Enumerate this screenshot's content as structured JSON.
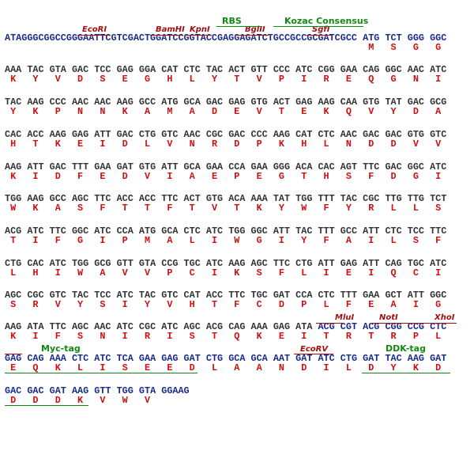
{
  "header": {
    "sequence": "ATAGGGCGGCCGGGAATTCGTCGACTGGATCCGGTACCGAGGAGATCTGCCGCCGCGATCGCC",
    "codons": [
      "ATG",
      "TCT",
      "GGG",
      "GGC"
    ],
    "aa": [
      "M",
      "S",
      "G",
      "G"
    ],
    "annotations": [
      "EcoRI",
      "BamHI",
      "KpnI",
      "BglII",
      "SgfI",
      "RBS",
      "Kozac Consensus"
    ]
  },
  "rows": [
    {
      "codons": [
        "AAA",
        "TAC",
        "GTA",
        "GAC",
        "TCC",
        "GAG",
        "GGA",
        "CAT",
        "CTC",
        "TAC",
        "ACT",
        "GTT",
        "CCC",
        "ATC",
        "CGG",
        "GAA",
        "CAG",
        "GGC",
        "AAC",
        "ATC"
      ],
      "aa": [
        "K",
        "Y",
        "V",
        "D",
        "S",
        "E",
        "G",
        "H",
        "L",
        "Y",
        "T",
        "V",
        "P",
        "I",
        "R",
        "E",
        "Q",
        "G",
        "N",
        "I"
      ]
    },
    {
      "codons": [
        "TAC",
        "AAG",
        "CCC",
        "AAC",
        "AAC",
        "AAG",
        "GCC",
        "ATG",
        "GCA",
        "GAC",
        "GAG",
        "GTG",
        "ACT",
        "GAG",
        "AAG",
        "CAA",
        "GTG",
        "TAT",
        "GAC",
        "GCG"
      ],
      "aa": [
        "Y",
        "K",
        "P",
        "N",
        "N",
        "K",
        "A",
        "M",
        "A",
        "D",
        "E",
        "V",
        "T",
        "E",
        "K",
        "Q",
        "V",
        "Y",
        "D",
        "A"
      ]
    },
    {
      "codons": [
        "CAC",
        "ACC",
        "AAG",
        "GAG",
        "ATT",
        "GAC",
        "CTG",
        "GTC",
        "AAC",
        "CGC",
        "GAC",
        "CCC",
        "AAG",
        "CAT",
        "CTC",
        "AAC",
        "GAC",
        "GAC",
        "GTG",
        "GTC"
      ],
      "aa": [
        "H",
        "T",
        "K",
        "E",
        "I",
        "D",
        "L",
        "V",
        "N",
        "R",
        "D",
        "P",
        "K",
        "H",
        "L",
        "N",
        "D",
        "D",
        "V",
        "V"
      ]
    },
    {
      "codons": [
        "AAG",
        "ATT",
        "GAC",
        "TTT",
        "GAA",
        "GAT",
        "GTG",
        "ATT",
        "GCA",
        "GAA",
        "CCA",
        "GAA",
        "GGG",
        "ACA",
        "CAC",
        "AGT",
        "TTC",
        "GAC",
        "GGC",
        "ATC"
      ],
      "aa": [
        "K",
        "I",
        "D",
        "F",
        "E",
        "D",
        "V",
        "I",
        "A",
        "E",
        "P",
        "E",
        "G",
        "T",
        "H",
        "S",
        "F",
        "D",
        "G",
        "I"
      ]
    },
    {
      "codons": [
        "TGG",
        "AAG",
        "GCC",
        "AGC",
        "TTC",
        "ACC",
        "ACC",
        "TTC",
        "ACT",
        "GTG",
        "ACA",
        "AAA",
        "TAT",
        "TGG",
        "TTT",
        "TAC",
        "CGC",
        "TTG",
        "TTG",
        "TCT"
      ],
      "aa": [
        "W",
        "K",
        "A",
        "S",
        "F",
        "T",
        "T",
        "F",
        "T",
        "V",
        "T",
        "K",
        "Y",
        "W",
        "F",
        "Y",
        "R",
        "L",
        "L",
        "S"
      ]
    },
    {
      "codons": [
        "ACG",
        "ATC",
        "TTC",
        "GGC",
        "ATC",
        "CCA",
        "ATG",
        "GCA",
        "CTC",
        "ATC",
        "TGG",
        "GGC",
        "ATT",
        "TAC",
        "TTT",
        "GCC",
        "ATT",
        "CTC",
        "TCC",
        "TTC"
      ],
      "aa": [
        "T",
        "I",
        "F",
        "G",
        "I",
        "P",
        "M",
        "A",
        "L",
        "I",
        "W",
        "G",
        "I",
        "Y",
        "F",
        "A",
        "I",
        "L",
        "S",
        "F"
      ]
    },
    {
      "codons": [
        "CTG",
        "CAC",
        "ATC",
        "TGG",
        "GCG",
        "GTT",
        "GTA",
        "CCG",
        "TGC",
        "ATC",
        "AAG",
        "AGC",
        "TTC",
        "CTG",
        "ATT",
        "GAG",
        "ATT",
        "CAG",
        "TGC",
        "ATC"
      ],
      "aa": [
        "L",
        "H",
        "I",
        "W",
        "A",
        "V",
        "V",
        "P",
        "C",
        "I",
        "K",
        "S",
        "F",
        "L",
        "I",
        "E",
        "I",
        "Q",
        "C",
        "I"
      ]
    },
    {
      "codons": [
        "AGC",
        "CGC",
        "GTC",
        "TAC",
        "TCC",
        "ATC",
        "TAC",
        "GTC",
        "CAT",
        "ACC",
        "TTC",
        "TGC",
        "GAT",
        "CCA",
        "CTC",
        "TTT",
        "GAA",
        "GCT",
        "ATT",
        "GGC"
      ],
      "aa": [
        "S",
        "R",
        "V",
        "Y",
        "S",
        "I",
        "Y",
        "V",
        "H",
        "T",
        "F",
        "C",
        "D",
        "P",
        "L",
        "F",
        "E",
        "A",
        "I",
        "G"
      ]
    },
    {
      "codons": [
        "AAG",
        "ATA",
        "TTC",
        "AGC",
        "AAC",
        "ATC",
        "CGC",
        "ATC",
        "AGC",
        "ACG",
        "CAG",
        "AAA",
        "GAG",
        "ATA",
        "ACG",
        "CGT",
        "ACG",
        "CGG",
        "CCG",
        "CTC"
      ],
      "aa": [
        "K",
        "I",
        "F",
        "S",
        "N",
        "I",
        "R",
        "I",
        "S",
        "T",
        "Q",
        "K",
        "E",
        "I",
        "T",
        "R",
        "T",
        "R",
        "P",
        "L"
      ],
      "annotations": [
        "MluI",
        "NotI",
        "XhoI"
      ]
    },
    {
      "codons": [
        "GAG",
        "CAG",
        "AAA",
        "CTC",
        "ATC",
        "TCA",
        "GAA",
        "GAG",
        "GAT",
        "CTG",
        "GCA",
        "GCA",
        "AAT",
        "GAT",
        "ATC",
        "CTG",
        "GAT",
        "TAC",
        "AAG",
        "GAT"
      ],
      "aa": [
        "E",
        "Q",
        "K",
        "L",
        "I",
        "S",
        "E",
        "E",
        "D",
        "L",
        "A",
        "A",
        "N",
        "D",
        "I",
        "L",
        "D",
        "Y",
        "K",
        "D"
      ],
      "annotations": [
        "Myc-tag",
        "EcoRV",
        "DDK-tag"
      ]
    },
    {
      "codons": [
        "GAC",
        "GAC",
        "GAT",
        "AAG",
        "GTT",
        "TGG",
        "GTA",
        "GGAAG"
      ],
      "aa": [
        "D",
        "D",
        "D",
        "K",
        "V",
        "W",
        "V"
      ]
    }
  ]
}
